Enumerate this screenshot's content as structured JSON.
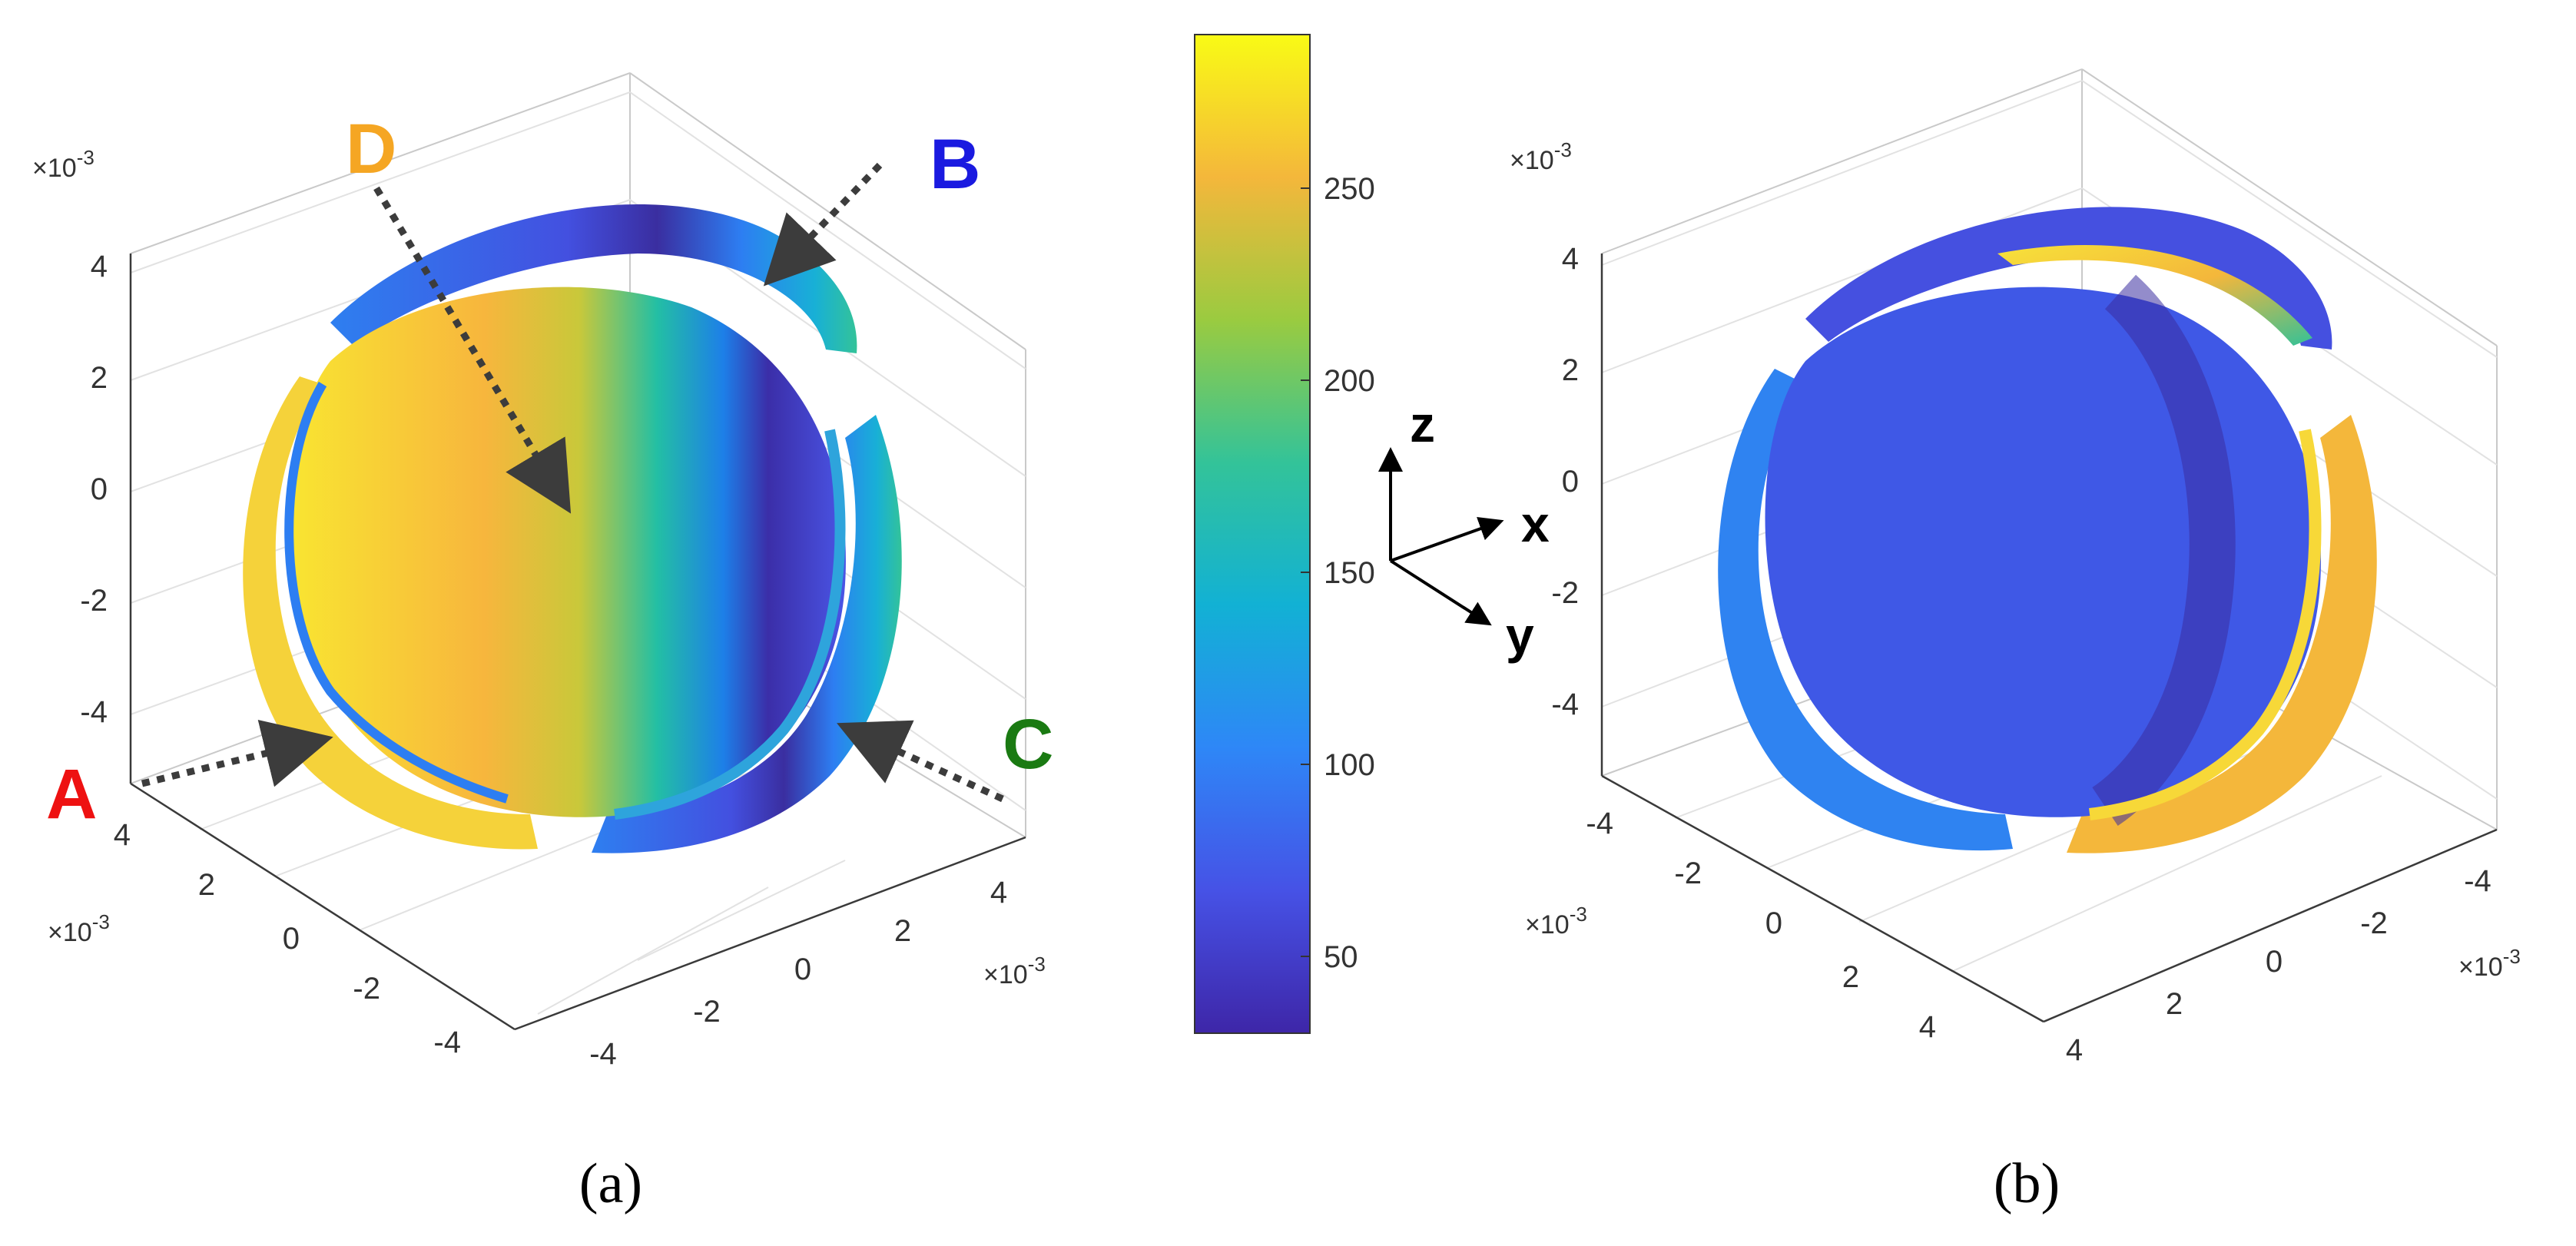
{
  "chart_data": [
    {
      "panel": "a",
      "type": "heatmap",
      "caption": "(a)",
      "z_ticks": [
        "4",
        "2",
        "0",
        "-2",
        "-4"
      ],
      "x_ticks": [
        "-4",
        "-2",
        "0",
        "2",
        "4"
      ],
      "y_ticks": [
        "4",
        "2",
        "0",
        "-2",
        "-4"
      ],
      "z_exponent": "×10",
      "x_exponent": "×10",
      "y_exponent": "×10",
      "exponent_power": "-3",
      "annotations": [
        {
          "label": "A",
          "color": "#ee1111"
        },
        {
          "label": "B",
          "color": "#1a1ae0"
        },
        {
          "label": "C",
          "color": "#1a7a12"
        },
        {
          "label": "D",
          "color": "#f5a623"
        }
      ]
    },
    {
      "panel": "b",
      "type": "heatmap",
      "caption": "(b)",
      "z_ticks": [
        "4",
        "2",
        "0",
        "-2",
        "-4"
      ],
      "x_ticks": [
        "4",
        "2",
        "0",
        "-2",
        "-4"
      ],
      "y_ticks": [
        "-4",
        "-2",
        "0",
        "2",
        "4"
      ],
      "z_exponent": "×10",
      "x_exponent": "×10",
      "y_exponent": "×10",
      "exponent_power": "-3"
    }
  ],
  "colorbar": {
    "range": [
      30,
      290
    ],
    "ticks": [
      50,
      100,
      150,
      200,
      250
    ],
    "colormap": "parula",
    "colors": [
      "#3e26a8",
      "#4652e6",
      "#2e87f7",
      "#12b1d4",
      "#33c399",
      "#9acb40",
      "#f4b73b",
      "#f9fb15"
    ]
  },
  "axes_glyph": {
    "labels": [
      "z",
      "x",
      "y"
    ]
  }
}
